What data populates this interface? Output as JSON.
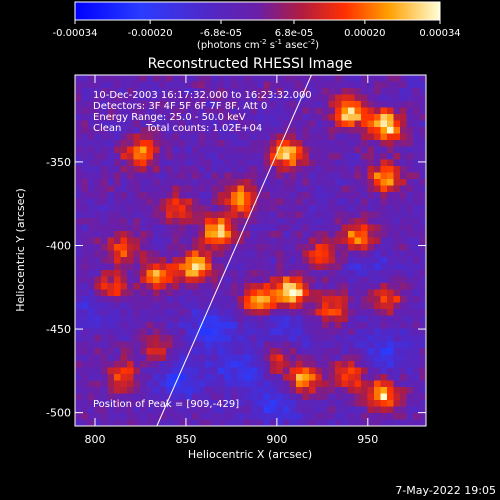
{
  "chart_data": {
    "type": "heatmap",
    "title": "Reconstructed RHESSI Image",
    "xlabel": "Heliocentric X (arcsec)",
    "ylabel": "Heliocentric Y (arcsec)",
    "xlim": [
      789,
      982
    ],
    "ylim": [
      -508,
      -298
    ],
    "xticks": [
      800,
      850,
      900,
      950
    ],
    "yticks": [
      -350,
      -400,
      -450,
      -500
    ],
    "colorbar": {
      "range": [
        -0.00034,
        0.00034
      ],
      "ticks": [
        "-0.00034",
        "-0.00020",
        "-6.8e-05",
        "6.8e-05",
        "0.00020",
        "0.00034"
      ],
      "tick_values": [
        -0.00034,
        -0.0002,
        -6.8e-05,
        6.8e-05,
        0.0002,
        0.00034
      ],
      "label": "(photons cm",
      "label_exp1": "-2",
      "label_mid": " s",
      "label_exp2": "-1",
      "label_end": " asec",
      "label_exp3": "-2",
      "label_close": ")"
    },
    "annotations": [
      "10-Dec-2003 16:17:32.000 to 16:23:32.000",
      "Detectors: 3F 4F 5F 6F 7F 8F, Att 0",
      "Energy Range: 25.0 - 50.0 keV",
      "Clean",
      "Total counts: 1.02E+04"
    ],
    "peak_label": "Position of Peak = [909,-429]",
    "hot_regions": [
      {
        "x": 960,
        "y": -328,
        "strength": 1.0
      },
      {
        "x": 940,
        "y": -320,
        "strength": 0.95
      },
      {
        "x": 905,
        "y": -345,
        "strength": 0.9
      },
      {
        "x": 880,
        "y": -372,
        "strength": 0.85
      },
      {
        "x": 960,
        "y": -360,
        "strength": 0.75
      },
      {
        "x": 945,
        "y": -395,
        "strength": 0.8
      },
      {
        "x": 925,
        "y": -405,
        "strength": 0.6
      },
      {
        "x": 868,
        "y": -392,
        "strength": 0.9
      },
      {
        "x": 855,
        "y": -412,
        "strength": 0.95
      },
      {
        "x": 835,
        "y": -418,
        "strength": 0.7
      },
      {
        "x": 815,
        "y": -402,
        "strength": 0.6
      },
      {
        "x": 845,
        "y": -378,
        "strength": 0.55
      },
      {
        "x": 908,
        "y": -428,
        "strength": 1.0
      },
      {
        "x": 890,
        "y": -432,
        "strength": 0.85
      },
      {
        "x": 930,
        "y": -438,
        "strength": 0.6
      },
      {
        "x": 825,
        "y": -345,
        "strength": 0.7
      },
      {
        "x": 810,
        "y": -425,
        "strength": 0.5
      },
      {
        "x": 960,
        "y": -432,
        "strength": 0.55
      },
      {
        "x": 958,
        "y": -490,
        "strength": 0.85
      },
      {
        "x": 940,
        "y": -478,
        "strength": 0.55
      },
      {
        "x": 915,
        "y": -480,
        "strength": 0.75
      },
      {
        "x": 900,
        "y": -468,
        "strength": 0.45
      },
      {
        "x": 815,
        "y": -478,
        "strength": 0.6
      },
      {
        "x": 835,
        "y": -462,
        "strength": 0.45
      }
    ],
    "cold_regions": [
      {
        "x": 865,
        "y": -450,
        "strength": 1.0
      },
      {
        "x": 845,
        "y": -480,
        "strength": 0.9
      },
      {
        "x": 880,
        "y": -475,
        "strength": 0.85
      },
      {
        "x": 905,
        "y": -450,
        "strength": 0.7
      },
      {
        "x": 960,
        "y": -462,
        "strength": 0.75
      },
      {
        "x": 900,
        "y": -495,
        "strength": 0.8
      },
      {
        "x": 800,
        "y": -440,
        "strength": 0.5
      },
      {
        "x": 950,
        "y": -410,
        "strength": 0.55
      }
    ],
    "limb_line": {
      "x1": 834,
      "y1": -508,
      "x2": 919,
      "y2": -298
    }
  },
  "footer": {
    "date": "7-May-2022 19:05"
  }
}
